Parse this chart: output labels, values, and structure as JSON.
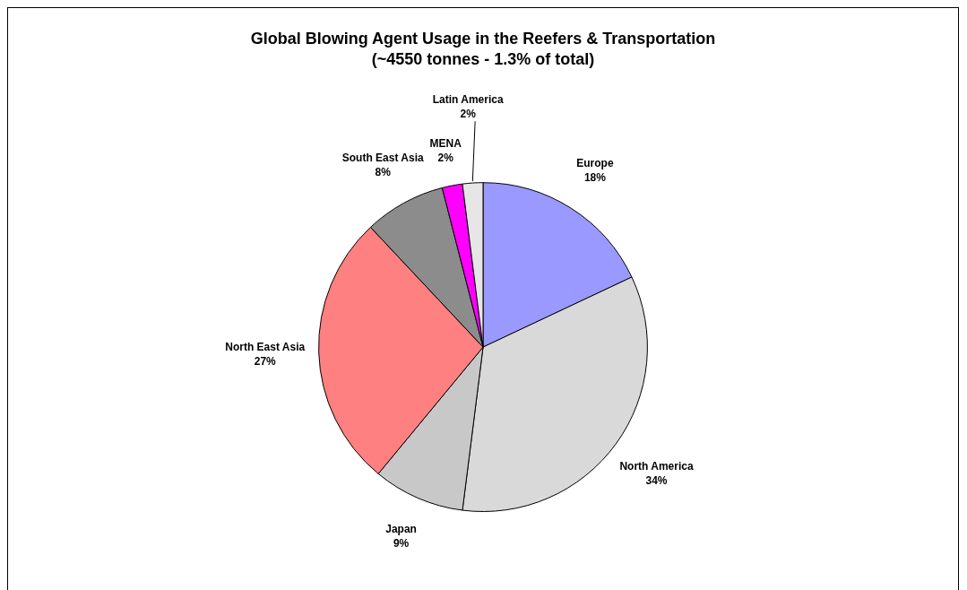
{
  "chart_data": {
    "type": "pie",
    "title": "Global Blowing Agent Usage in the Reefers & Transportation",
    "subtitle": "(~4550 tonnes - 1.3% of total)",
    "categories": [
      "Europe",
      "North America",
      "Japan",
      "North East Asia",
      "South East Asia",
      "MENA",
      "Latin America"
    ],
    "values": [
      18,
      34,
      9,
      27,
      8,
      2,
      2
    ],
    "colors": [
      "#9999ff",
      "#d9d9d9",
      "#c8c8c8",
      "#ff8080",
      "#8c8c8c",
      "#ff00ff",
      "#e6e6e6"
    ],
    "value_labels": [
      "18%",
      "34%",
      "9%",
      "27%",
      "8%",
      "2%",
      "2%"
    ],
    "legend": false
  }
}
